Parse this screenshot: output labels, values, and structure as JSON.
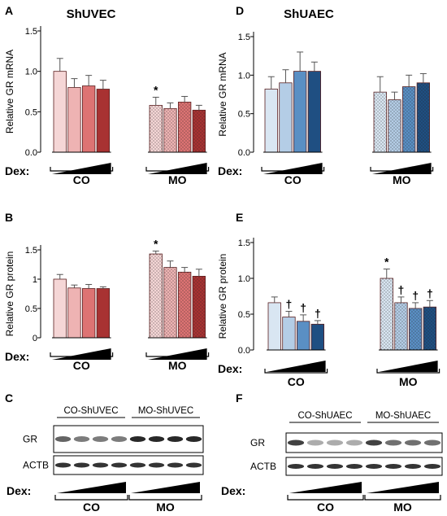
{
  "colors": {
    "red": [
      "#f5d6d6",
      "#eeb3b3",
      "#dd7373",
      "#a83232"
    ],
    "blue": [
      "#d9e6f2",
      "#b4cde6",
      "#5a8fc4",
      "#1f4f82"
    ],
    "axis": "#000000"
  },
  "dex_label": "Dex:",
  "chart_data": [
    {
      "panel": "A",
      "type": "bar",
      "title": "ShUVEC",
      "ylabel": "Relative GR mRNA",
      "ylim": [
        0,
        1.5
      ],
      "yticks": [
        "0.0",
        "0.5",
        "1.0",
        "1.5"
      ],
      "groups": [
        "CO",
        "MO"
      ],
      "palette": "red",
      "series": [
        {
          "group": "CO",
          "values": [
            1.0,
            0.8,
            0.82,
            0.78
          ],
          "errors": [
            0.16,
            0.11,
            0.13,
            0.11
          ],
          "marks": [
            "",
            "",
            "",
            ""
          ]
        },
        {
          "group": "MO",
          "values": [
            0.58,
            0.54,
            0.62,
            0.52
          ],
          "errors": [
            0.1,
            0.07,
            0.07,
            0.06
          ],
          "marks": [
            "*",
            "",
            "",
            ""
          ]
        }
      ]
    },
    {
      "panel": "D",
      "type": "bar",
      "title": "ShUAEC",
      "ylabel": "Relative GR mRNA",
      "ylim": [
        0,
        1.5
      ],
      "yticks": [
        "0.0",
        "0.5",
        "1.0",
        "1.5"
      ],
      "groups": [
        "CO",
        "MO"
      ],
      "palette": "blue",
      "series": [
        {
          "group": "CO",
          "values": [
            0.82,
            0.9,
            1.05,
            1.05
          ],
          "errors": [
            0.16,
            0.17,
            0.25,
            0.12
          ],
          "marks": [
            "",
            "",
            "",
            ""
          ]
        },
        {
          "group": "MO",
          "values": [
            0.78,
            0.68,
            0.85,
            0.9
          ],
          "errors": [
            0.2,
            0.1,
            0.15,
            0.12
          ],
          "marks": [
            "",
            "",
            "",
            ""
          ]
        }
      ]
    },
    {
      "panel": "B",
      "type": "bar",
      "title": "",
      "ylabel": "Relative GR protein",
      "ylim": [
        0,
        1.5
      ],
      "yticks": [
        "0",
        "0.5",
        "1",
        "1.5"
      ],
      "groups": [
        "CO",
        "MO"
      ],
      "palette": "red",
      "series": [
        {
          "group": "CO",
          "values": [
            1.0,
            0.85,
            0.84,
            0.84
          ],
          "errors": [
            0.08,
            0.05,
            0.07,
            0.03
          ],
          "marks": [
            "",
            "",
            "",
            ""
          ]
        },
        {
          "group": "MO",
          "values": [
            1.43,
            1.2,
            1.12,
            1.05
          ],
          "errors": [
            0.05,
            0.11,
            0.08,
            0.12
          ],
          "marks": [
            "*",
            "",
            "",
            ""
          ]
        }
      ]
    },
    {
      "panel": "E",
      "type": "bar",
      "title": "",
      "ylabel": "Relative GR protein",
      "ylim": [
        0,
        1.5
      ],
      "yticks": [
        "0.0",
        "0.5",
        "1.0",
        "1.5"
      ],
      "groups": [
        "CO",
        "MO"
      ],
      "palette": "blue",
      "series": [
        {
          "group": "CO",
          "values": [
            0.66,
            0.46,
            0.4,
            0.36
          ],
          "errors": [
            0.08,
            0.08,
            0.09,
            0.05
          ],
          "marks": [
            "",
            "†",
            "†",
            "†"
          ]
        },
        {
          "group": "MO",
          "values": [
            1.0,
            0.66,
            0.58,
            0.6
          ],
          "errors": [
            0.13,
            0.08,
            0.08,
            0.09
          ],
          "marks": [
            "*",
            "†",
            "†",
            "†"
          ]
        }
      ]
    }
  ],
  "blots": [
    {
      "panel": "C",
      "headers": [
        "CO-ShUVEC",
        "MO-ShUVEC"
      ],
      "rows": [
        "GR",
        "ACTB"
      ],
      "groups": [
        "CO",
        "MO"
      ]
    },
    {
      "panel": "F",
      "headers": [
        "CO-ShUAEC",
        "MO-ShUAEC"
      ],
      "rows": [
        "GR",
        "ACTB"
      ],
      "groups": [
        "CO",
        "MO"
      ]
    }
  ]
}
